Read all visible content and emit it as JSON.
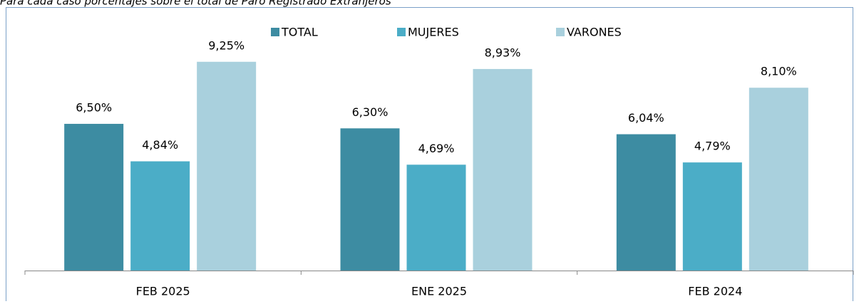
{
  "chart_data": {
    "type": "bar",
    "title": "Para cada caso porcentajes sobre el total de Paro Registrado Extranjeros",
    "categories": [
      "FEB 2025",
      "ENE 2025",
      "FEB 2024"
    ],
    "series": [
      {
        "name": "TOTAL",
        "color": "#3d8ca2",
        "values": [
          6.5,
          6.3,
          6.04
        ],
        "value_labels": [
          "6,50%",
          "6,30%",
          "6,04%"
        ]
      },
      {
        "name": "MUJERES",
        "color": "#4badc7",
        "values": [
          4.84,
          4.69,
          4.79
        ],
        "value_labels": [
          "4,84%",
          "4,69%",
          "4,79%"
        ]
      },
      {
        "name": "VARONES",
        "color": "#a9d0dd",
        "values": [
          9.25,
          8.93,
          8.1
        ],
        "value_labels": [
          "9,25%",
          "8,93%",
          "8,10%"
        ]
      }
    ]
  }
}
